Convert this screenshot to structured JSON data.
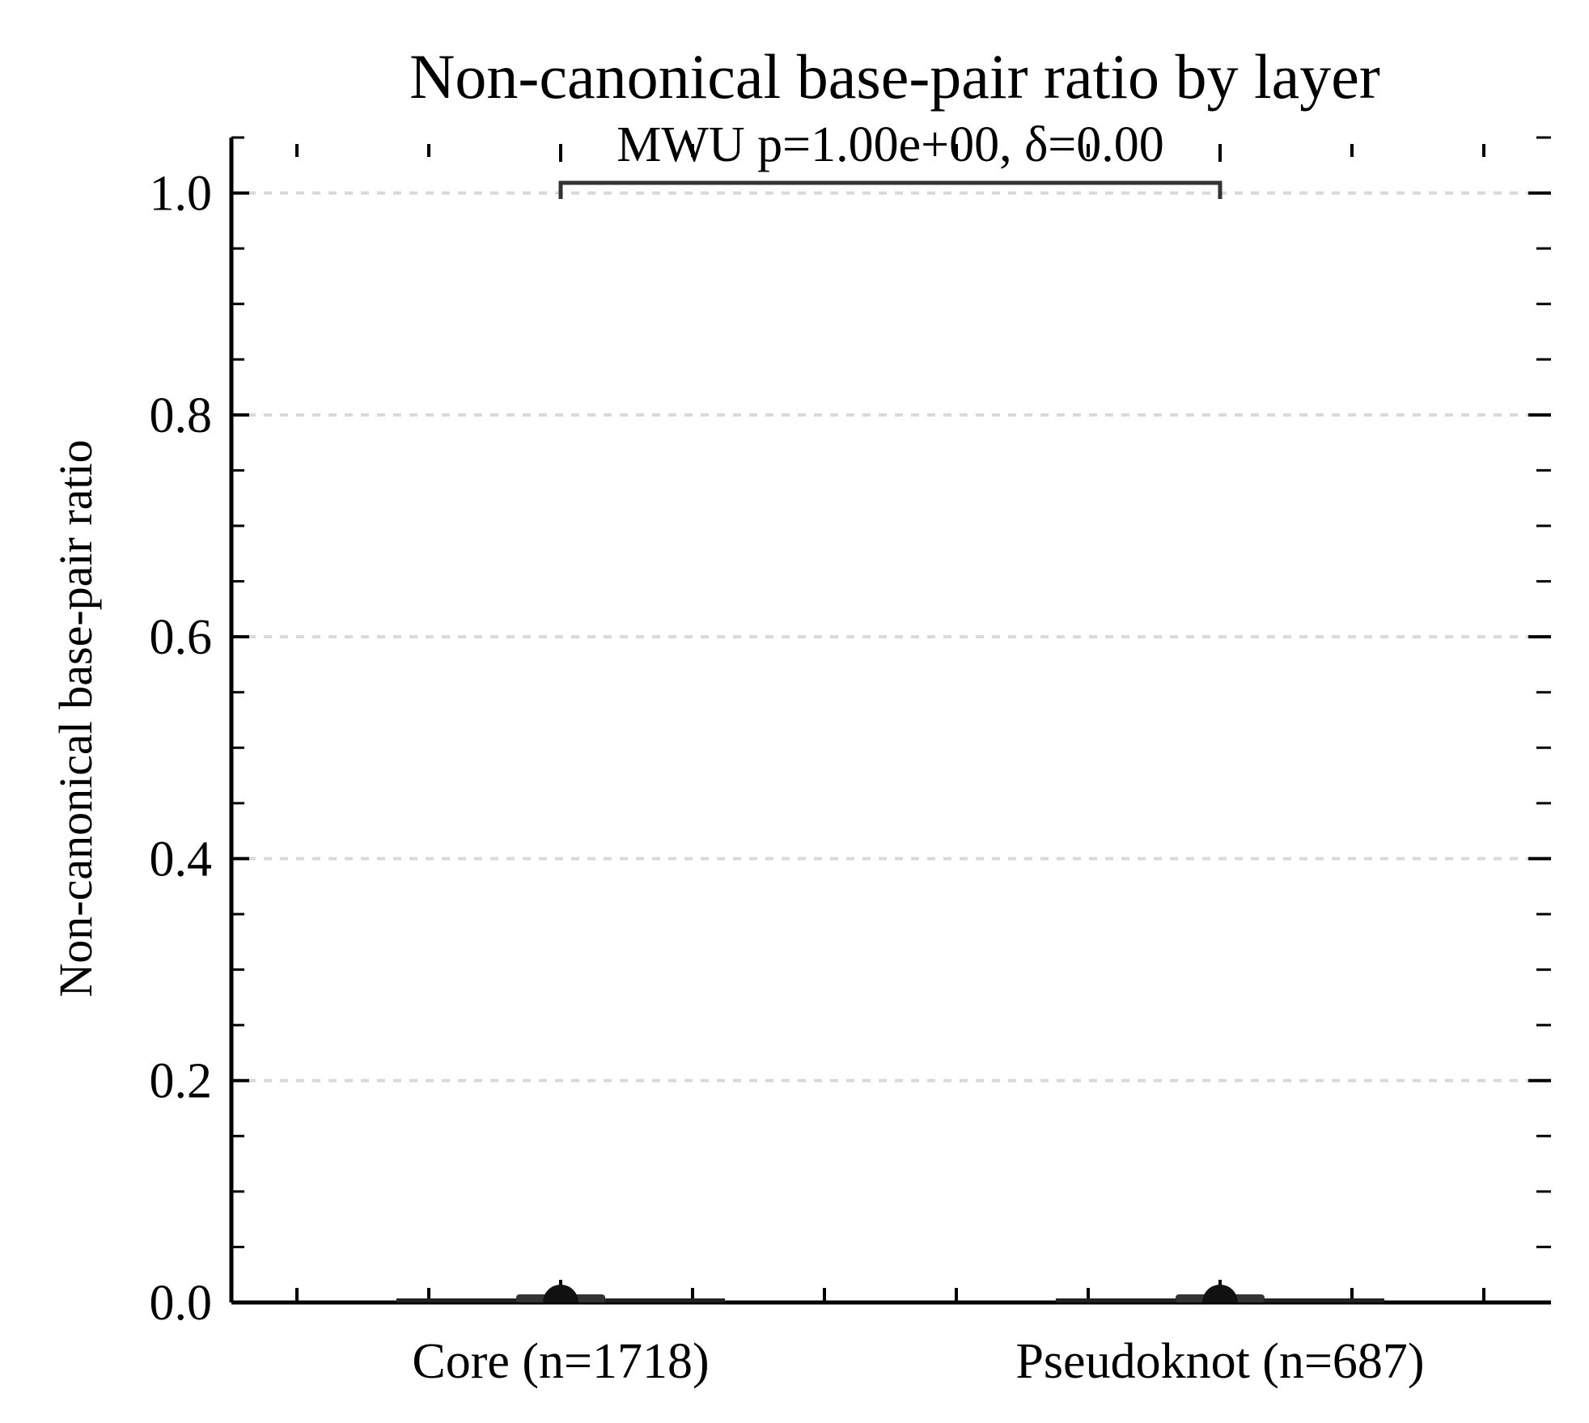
{
  "chart_data": {
    "type": "violin",
    "title": "Non-canonical base-pair ratio by layer",
    "ylabel": "Non-canonical base-pair ratio",
    "xlabel": "",
    "categories": [
      "Core (n=1718)",
      "Pseudoknot (n=687)"
    ],
    "y_ticks": [
      "0.0",
      "0.2",
      "0.4",
      "0.6",
      "0.8",
      "1.0"
    ],
    "ylim": [
      0,
      1.05
    ],
    "series": [
      {
        "values": [
          0.0,
          0.0
        ]
      }
    ],
    "grid": "horizontal dashed",
    "annotation": {
      "text": "MWU p=1.00e+00, δ=0.00",
      "between": [
        "Core (n=1718)",
        "Pseudoknot (n=687)"
      ]
    }
  }
}
